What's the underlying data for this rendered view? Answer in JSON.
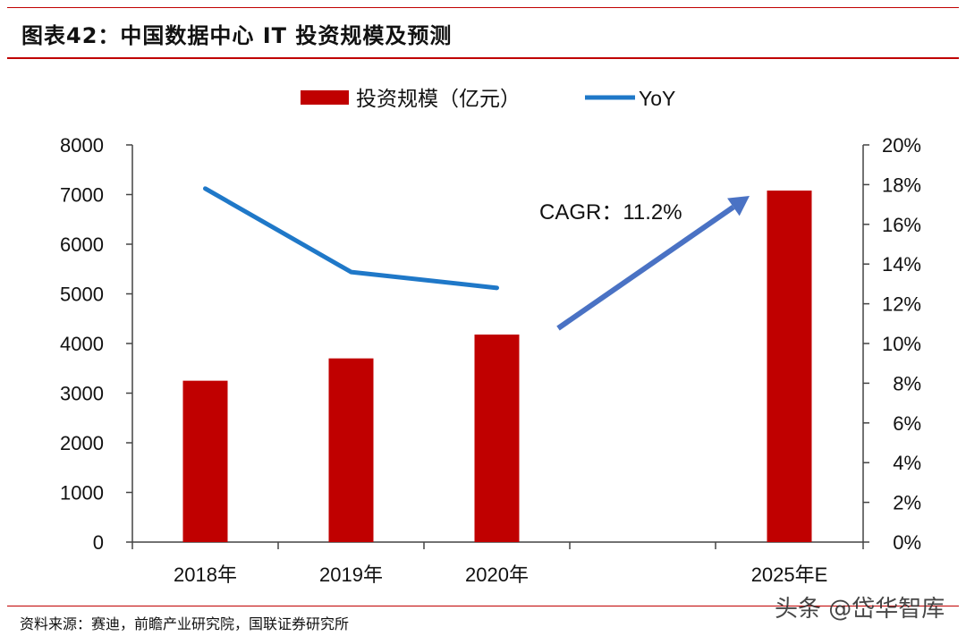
{
  "header": {
    "title": "图表42：中国数据中心 IT 投资规模及预测"
  },
  "footer": {
    "source": "资料来源：赛迪，前瞻产业研究院，国联证券研究所"
  },
  "watermark": {
    "text": "头条 @岱华智库"
  },
  "colors": {
    "bar": "#c00000",
    "line": "#1f78c8",
    "arrow": "#4a72c4",
    "rule": "#c00000"
  },
  "chart_data": {
    "type": "bar",
    "categories": [
      "2018年",
      "2019年",
      "2020年",
      "2025年E"
    ],
    "series": [
      {
        "name": "投资规模（亿元）",
        "type": "bar",
        "axis": "left",
        "values": [
          3250,
          3700,
          4180,
          7080
        ]
      },
      {
        "name": "YoY",
        "type": "line",
        "axis": "right",
        "values": [
          0.178,
          0.136,
          0.128,
          null
        ]
      }
    ],
    "y_left": {
      "min": 0,
      "max": 8000,
      "ticks": [
        0,
        1000,
        2000,
        3000,
        4000,
        5000,
        6000,
        7000,
        8000
      ]
    },
    "y_right": {
      "min": 0,
      "max": 0.2,
      "ticks": [
        "0%",
        "2%",
        "4%",
        "6%",
        "8%",
        "10%",
        "12%",
        "14%",
        "16%",
        "18%",
        "20%"
      ]
    },
    "annotation": {
      "text": "CAGR：11.2%"
    },
    "legend": {
      "position": "top"
    },
    "grid": false
  }
}
